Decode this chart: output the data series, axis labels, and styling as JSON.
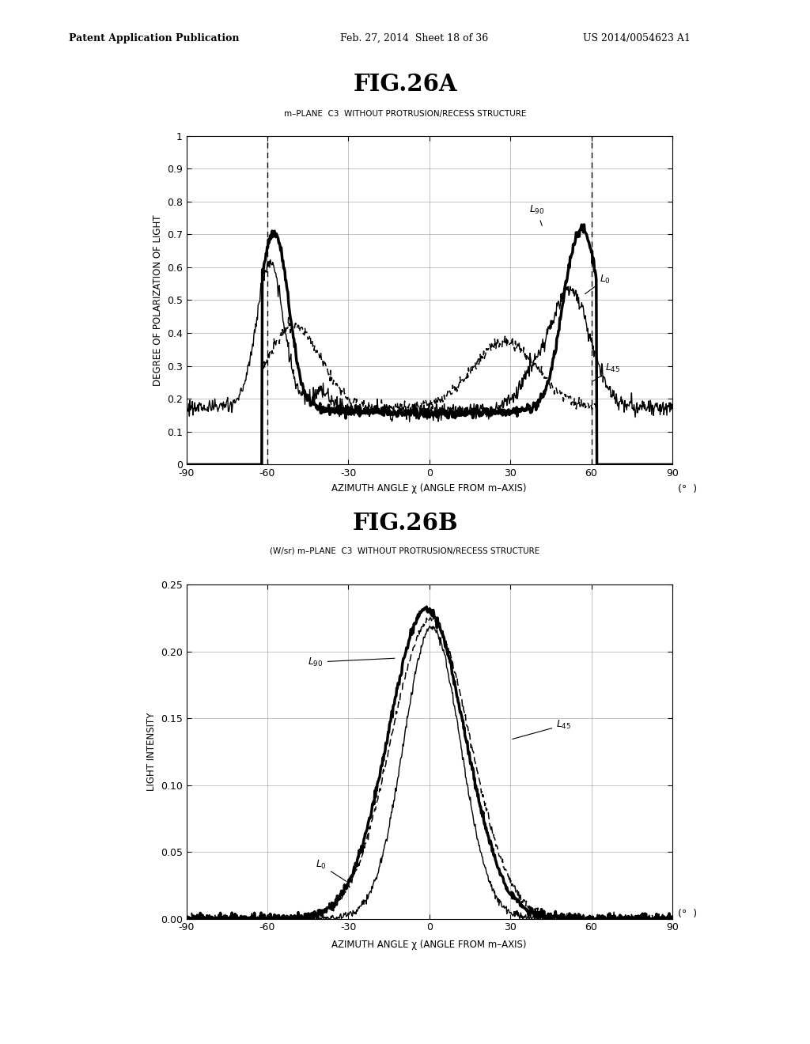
{
  "fig_title_a": "FIG.26A",
  "fig_title_b": "FIG.26B",
  "subtitle_a": "m–PLANE  C3  WITHOUT PROTRUSION/RECESS STRUCTURE",
  "subtitle_b": "(W/sr) m–PLANE  C3  WITHOUT PROTRUSION/RECESS STRUCTURE",
  "xlabel": "AZIMUTH ANGLE χ （ANGLE FROM m–AXIS）",
  "ylabel_a": "DEGREE OF POLARIZATION OF LIGHT",
  "ylabel_b": "LIGHT INTENSITY",
  "header_left": "Patent Application Publication",
  "header_mid": "Feb. 27, 2014  Sheet 18 of 36",
  "header_right": "US 2014/0054623 A1",
  "xtick_vals": [
    -90,
    -60,
    -30,
    0,
    30,
    60,
    90
  ],
  "xtick_labels": [
    "-90",
    "-60",
    "-30",
    "0",
    "30",
    "60",
    "90"
  ],
  "ytick_vals_a": [
    0,
    0.1,
    0.2,
    0.3,
    0.4,
    0.5,
    0.6,
    0.7,
    0.8,
    0.9,
    1.0
  ],
  "ytick_labels_a": [
    "0",
    "0.1",
    "0.2",
    "0.3",
    "0.4",
    "0.5",
    "0.6",
    "0.7",
    "0.8",
    "0.9",
    "1"
  ],
  "ytick_vals_b": [
    0.0,
    0.05,
    0.1,
    0.15,
    0.2,
    0.25
  ],
  "ytick_labels_b": [
    "0.00",
    "0.05",
    "0.10",
    "0.15",
    "0.20",
    "0.25"
  ]
}
